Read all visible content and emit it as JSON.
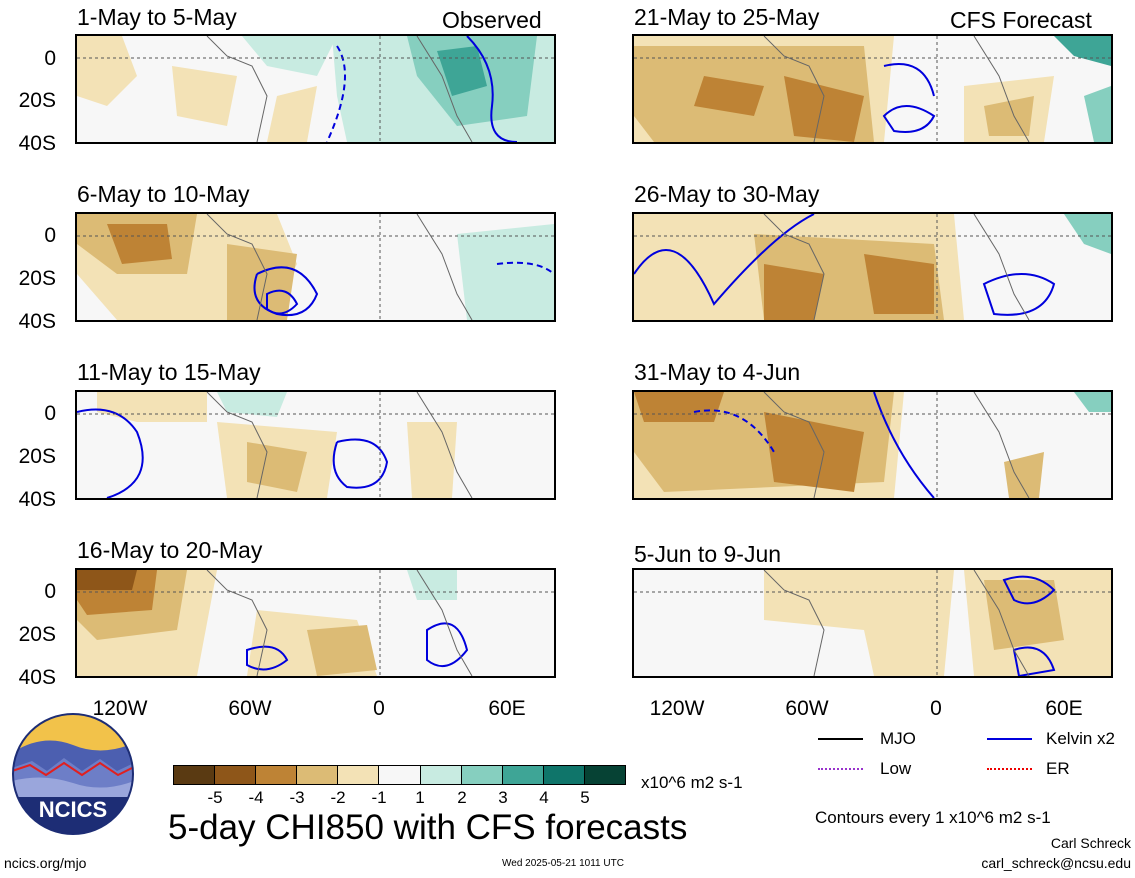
{
  "top_right_labels": {
    "observed": "Observed",
    "forecast": "CFS Forecast"
  },
  "panels": [
    {
      "title": "1-May to 5-May"
    },
    {
      "title": "6-May to 10-May"
    },
    {
      "title": "11-May to 15-May"
    },
    {
      "title": "16-May to 20-May"
    },
    {
      "title": "21-May to 25-May"
    },
    {
      "title": "26-May to 30-May"
    },
    {
      "title": "31-May to 4-Jun"
    },
    {
      "title": "5-Jun to 9-Jun"
    }
  ],
  "y_ticks": [
    "0",
    "20S",
    "40S"
  ],
  "x_ticks": [
    "120W",
    "60W",
    "0",
    "60E"
  ],
  "colorbar": {
    "colors": [
      "#5a3a12",
      "#8e5619",
      "#be8335",
      "#dcbb75",
      "#f3e2b6",
      "#f7f7f7",
      "#c8ebe1",
      "#86cfbf",
      "#3ea596",
      "#0f756a",
      "#064234"
    ],
    "labels": [
      "-5",
      "-4",
      "-3",
      "-2",
      "-1",
      "1",
      "2",
      "3",
      "4",
      "5"
    ],
    "units": "x10^6 m2 s-1"
  },
  "legend": {
    "mjo": "MJO",
    "kelvin": "Kelvin x2",
    "low": "Low",
    "er": "ER",
    "mjo_color": "#000000",
    "kelvin_color": "#0000dd",
    "low_color": "#9933cc",
    "er_color": "#ee0000"
  },
  "contour_note": "Contours every 1 x10^6 m2 s-1",
  "title": "5-day CHI850 with CFS forecasts",
  "author": "Carl Schreck",
  "email": "carl_schreck@ncsu.edu",
  "site": "ncics.org/mjo",
  "timestamp": "Wed 2025-05-21 1011 UTC",
  "logo_text": "NCICS"
}
